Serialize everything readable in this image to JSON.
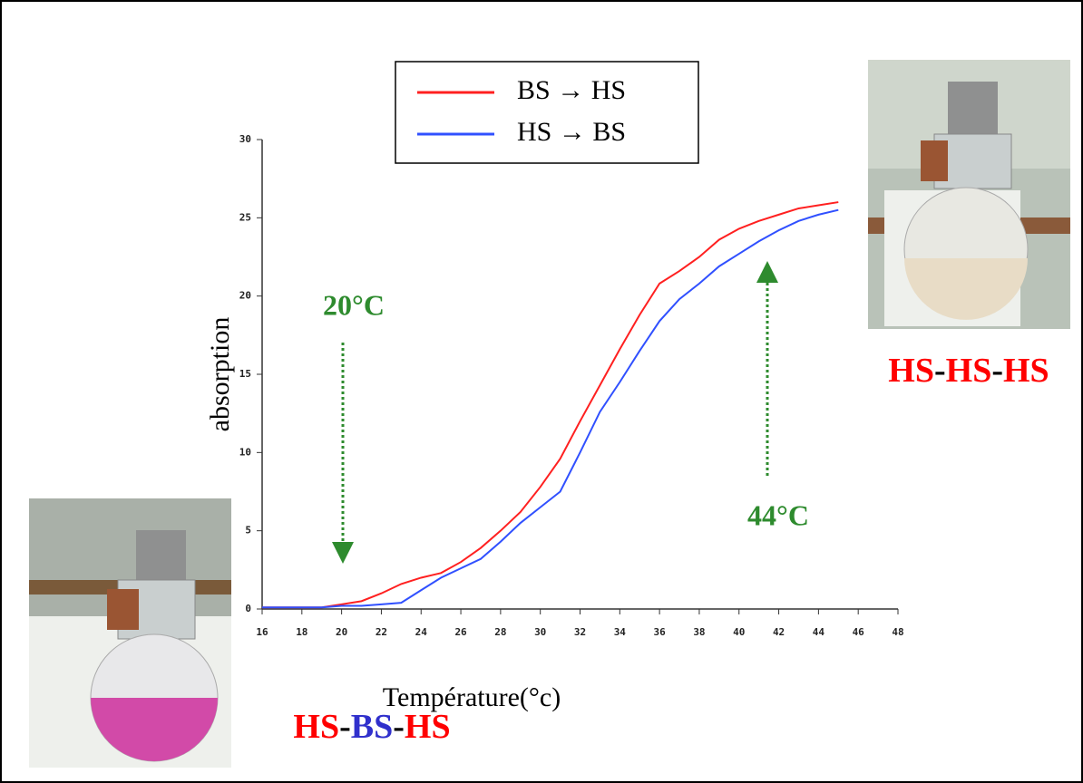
{
  "chart_data": {
    "type": "line",
    "xlabel": "Température(°c)",
    "ylabel": "absorption",
    "xlim": [
      16,
      48
    ],
    "ylim": [
      0,
      30
    ],
    "xticks": [
      16,
      18,
      20,
      22,
      24,
      26,
      28,
      30,
      32,
      34,
      36,
      38,
      40,
      42,
      44,
      46,
      48
    ],
    "yticks": [
      0,
      5,
      10,
      15,
      20,
      25,
      30
    ],
    "grid": false,
    "legend": "top",
    "x": [
      16,
      17,
      18,
      19,
      20,
      21,
      22,
      23,
      24,
      25,
      26,
      27,
      28,
      29,
      30,
      31,
      32,
      33,
      34,
      35,
      36,
      37,
      38,
      39,
      40,
      41,
      42,
      43,
      44,
      45
    ],
    "series": [
      {
        "name": "BS → HS",
        "color": "#ff2020",
        "values": [
          0.1,
          0.1,
          0.1,
          0.1,
          0.3,
          0.5,
          1.0,
          1.6,
          2.0,
          2.3,
          3.0,
          3.9,
          5.0,
          6.2,
          7.8,
          9.6,
          12.0,
          14.3,
          16.6,
          18.8,
          20.8,
          21.6,
          22.5,
          23.6,
          24.3,
          24.8,
          25.2,
          25.6,
          25.8,
          26.0
        ]
      },
      {
        "name": "HS → BS",
        "color": "#3050ff",
        "values": [
          0.1,
          0.1,
          0.1,
          0.1,
          0.2,
          0.2,
          0.3,
          0.4,
          1.2,
          2.0,
          2.6,
          3.2,
          4.3,
          5.5,
          6.5,
          7.5,
          10.0,
          12.6,
          14.5,
          16.5,
          18.4,
          19.8,
          20.8,
          21.9,
          22.7,
          23.5,
          24.2,
          24.8,
          25.2,
          25.5
        ]
      }
    ],
    "annotations": [
      {
        "text": "20°C",
        "color": "#2e8b2e"
      },
      {
        "text": "44°C",
        "color": "#2e8b2e"
      }
    ],
    "states": [
      {
        "parts": [
          {
            "text": "HS",
            "color": "#ff0000"
          },
          {
            "text": "-",
            "color": "#000000"
          },
          {
            "text": "HS",
            "color": "#ff0000"
          },
          {
            "text": "-",
            "color": "#000000"
          },
          {
            "text": "HS",
            "color": "#ff0000"
          }
        ]
      },
      {
        "parts": [
          {
            "text": "HS",
            "color": "#ff0000"
          },
          {
            "text": "-",
            "color": "#000000"
          },
          {
            "text": "BS",
            "color": "#3030cc"
          },
          {
            "text": "-",
            "color": "#000000"
          },
          {
            "text": "HS",
            "color": "#ff0000"
          }
        ]
      }
    ]
  }
}
